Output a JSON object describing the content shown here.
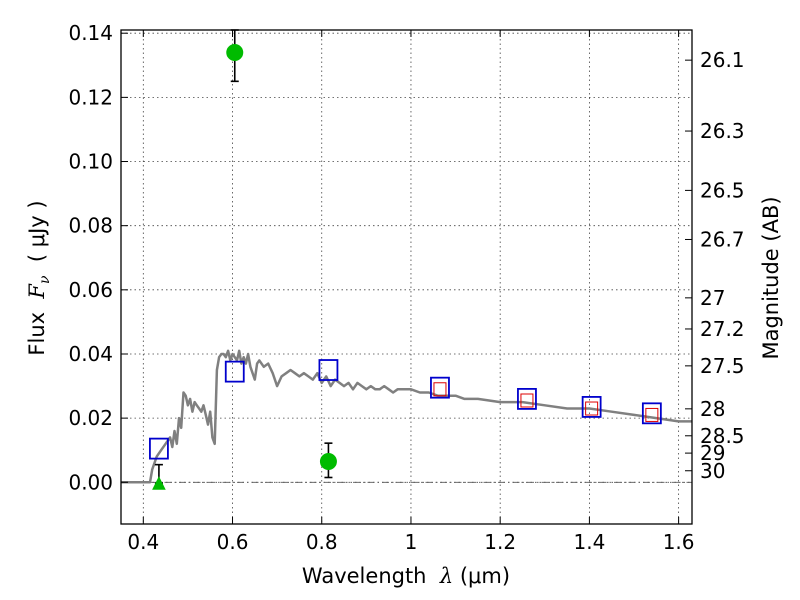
{
  "chart_data": {
    "type": "scatter",
    "title": "",
    "xlabel_prefix": "Wavelength  ",
    "xlabel_symbol": "λ",
    "xlabel_unit": " (μm)",
    "ylabel_prefix": "Flux  ",
    "ylabel_symbol": "F",
    "ylabel_subscript": "ν",
    "ylabel_unit": "  ( μJy )",
    "y2label": "Magnitude (AB)",
    "xlim": [
      0.35,
      1.63
    ],
    "ylim": [
      -0.013,
      0.141
    ],
    "grid": true,
    "x_ticks": [
      0.4,
      0.6,
      0.8,
      1.0,
      1.2,
      1.4,
      1.6
    ],
    "x_tick_labels": [
      "0.4",
      "0.6",
      "0.8",
      "1",
      "1.2",
      "1.4",
      "1.6"
    ],
    "y_ticks": [
      0.0,
      0.02,
      0.04,
      0.06,
      0.08,
      0.1,
      0.12,
      0.14
    ],
    "y_tick_labels": [
      "0.00",
      "0.02",
      "0.04",
      "0.06",
      "0.08",
      "0.10",
      "0.12",
      "0.14"
    ],
    "y2_ticks": [
      {
        "label": "26.1",
        "flux": 0.1316
      },
      {
        "label": "26.3",
        "flux": 0.1095
      },
      {
        "label": "26.5",
        "flux": 0.091
      },
      {
        "label": "26.7",
        "flux": 0.0757
      },
      {
        "label": "27",
        "flux": 0.0575
      },
      {
        "label": "27.2",
        "flux": 0.0478
      },
      {
        "label": "27.5",
        "flux": 0.0363
      },
      {
        "label": "28",
        "flux": 0.0229
      },
      {
        "label": "28.5",
        "flux": 0.0145
      },
      {
        "label": "29",
        "flux": 0.0091
      },
      {
        "label": "30",
        "flux": 0.0036
      }
    ],
    "series": [
      {
        "kind": "model-spectrum",
        "color": "#808080",
        "x": [
          0.35,
          0.415,
          0.42,
          0.43,
          0.44,
          0.45,
          0.46,
          0.465,
          0.47,
          0.475,
          0.48,
          0.485,
          0.49,
          0.495,
          0.5,
          0.505,
          0.51,
          0.515,
          0.52,
          0.525,
          0.53,
          0.535,
          0.54,
          0.545,
          0.55,
          0.555,
          0.56,
          0.565,
          0.57,
          0.575,
          0.58,
          0.585,
          0.59,
          0.595,
          0.6,
          0.605,
          0.61,
          0.615,
          0.62,
          0.625,
          0.63,
          0.635,
          0.64,
          0.645,
          0.65,
          0.655,
          0.66,
          0.665,
          0.67,
          0.68,
          0.69,
          0.7,
          0.71,
          0.72,
          0.73,
          0.74,
          0.75,
          0.76,
          0.77,
          0.78,
          0.79,
          0.8,
          0.81,
          0.82,
          0.83,
          0.84,
          0.85,
          0.86,
          0.87,
          0.88,
          0.89,
          0.9,
          0.91,
          0.92,
          0.93,
          0.94,
          0.95,
          0.96,
          0.97,
          0.98,
          1.0,
          1.02,
          1.04,
          1.06,
          1.08,
          1.1,
          1.12,
          1.15,
          1.2,
          1.25,
          1.3,
          1.35,
          1.4,
          1.45,
          1.5,
          1.55,
          1.6,
          1.63
        ],
        "y": [
          0.0,
          0.0,
          0.004,
          0.008,
          0.01,
          0.012,
          0.014,
          0.011,
          0.016,
          0.012,
          0.02,
          0.017,
          0.028,
          0.027,
          0.024,
          0.026,
          0.022,
          0.025,
          0.024,
          0.023,
          0.022,
          0.024,
          0.021,
          0.018,
          0.022,
          0.014,
          0.012,
          0.035,
          0.039,
          0.04,
          0.04,
          0.039,
          0.041,
          0.038,
          0.04,
          0.039,
          0.038,
          0.041,
          0.037,
          0.039,
          0.037,
          0.04,
          0.036,
          0.034,
          0.032,
          0.037,
          0.038,
          0.037,
          0.036,
          0.037,
          0.034,
          0.03,
          0.033,
          0.034,
          0.035,
          0.034,
          0.033,
          0.034,
          0.033,
          0.032,
          0.034,
          0.031,
          0.033,
          0.03,
          0.032,
          0.031,
          0.03,
          0.031,
          0.029,
          0.031,
          0.03,
          0.029,
          0.03,
          0.029,
          0.029,
          0.03,
          0.029,
          0.028,
          0.029,
          0.029,
          0.029,
          0.028,
          0.028,
          0.027,
          0.027,
          0.027,
          0.026,
          0.026,
          0.025,
          0.025,
          0.024,
          0.023,
          0.023,
          0.022,
          0.021,
          0.02,
          0.019,
          0.019
        ]
      },
      {
        "kind": "model-photometry",
        "marker": "blue-open-square",
        "color": "#0000cc",
        "x": [
          0.435,
          0.605,
          0.815,
          1.065,
          1.26,
          1.405,
          1.54
        ],
        "y": [
          0.0105,
          0.0345,
          0.035,
          0.0295,
          0.026,
          0.0235,
          0.0215
        ]
      },
      {
        "kind": "observed-photometry",
        "marker": "red-open-square",
        "color": "#dd0000",
        "x": [
          1.065,
          1.26,
          1.405,
          1.54
        ],
        "y": [
          0.029,
          0.0255,
          0.023,
          0.021
        ]
      },
      {
        "kind": "observed-detections",
        "marker": "green-circle",
        "color": "#00bb00",
        "points": [
          {
            "x": 0.605,
            "y": 0.134,
            "err_low": 0.125,
            "err_high": 0.141
          },
          {
            "x": 0.815,
            "y": 0.0065,
            "err_low": 0.0015,
            "err_high": 0.0122
          }
        ]
      },
      {
        "kind": "upper-limit",
        "marker": "green-triangle",
        "color": "#00bb00",
        "points": [
          {
            "x": 0.435,
            "y": -0.0003,
            "err_low": -0.0003,
            "err_high": 0.0055
          }
        ]
      }
    ],
    "zero_line": 0.0
  }
}
